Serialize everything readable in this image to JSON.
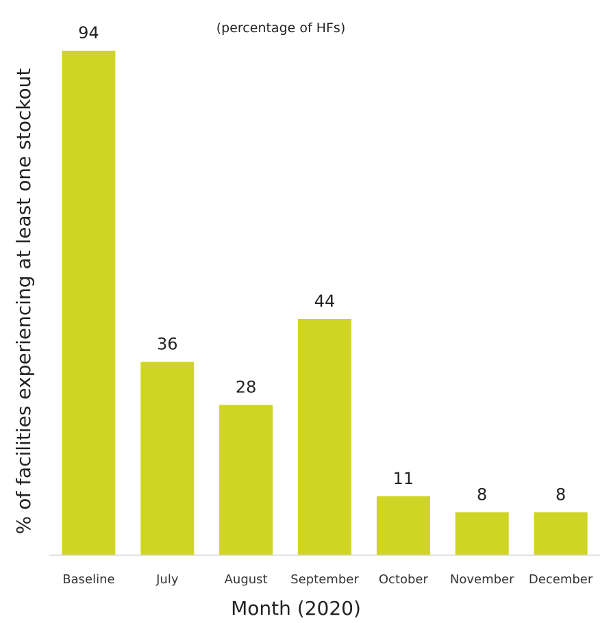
{
  "chart_data": {
    "type": "bar",
    "title": "",
    "subtitle": "(percentage of HFs)",
    "xlabel": "Month (2020)",
    "ylabel": "% of facilities experiencing at least one stockout",
    "categories": [
      "Baseline",
      "July",
      "August",
      "September",
      "October",
      "November",
      "December"
    ],
    "values": [
      94,
      36,
      28,
      44,
      11,
      8,
      8
    ],
    "ylim": [
      0,
      94
    ],
    "grid": false,
    "legend": "none",
    "bar_color": "#d0d424",
    "axis_color": "#d9d9d9"
  }
}
